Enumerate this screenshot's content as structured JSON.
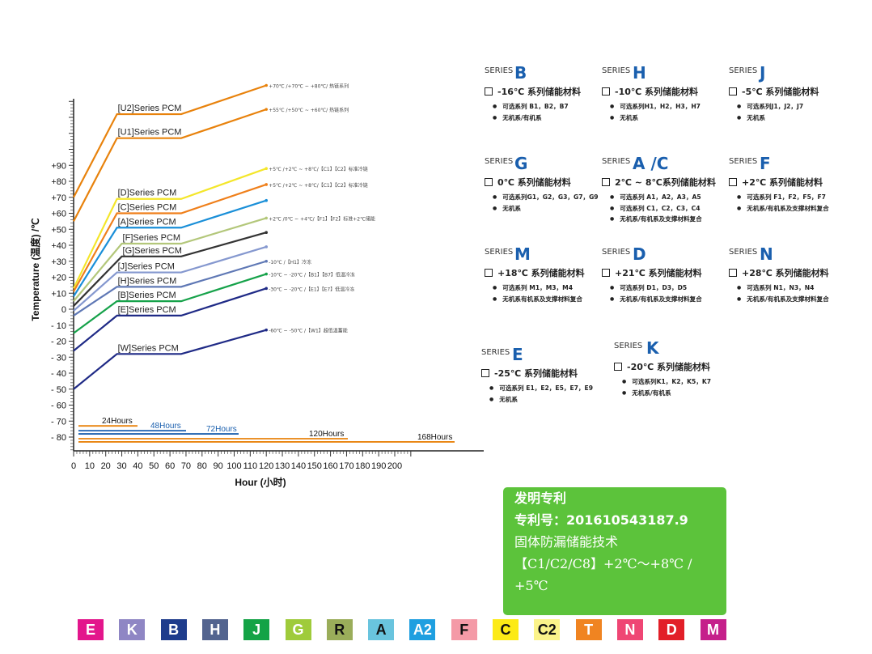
{
  "chart_data": {
    "type": "line",
    "ylabel": "Temperature (温度) /℃",
    "xlabel": "Hour (小时)",
    "xlim": [
      0,
      210
    ],
    "ylim": [
      -80,
      130
    ],
    "x_ticks": [
      "0",
      "10",
      "20",
      "30",
      "40",
      "50",
      "60",
      "70",
      "80",
      "90",
      "100",
      "110",
      "120",
      "130",
      "140",
      "150",
      "160",
      "170",
      "180",
      "190",
      "200"
    ],
    "y_ticks": [
      "+90",
      "+80",
      "+70",
      "+60",
      "+50",
      "+40",
      "+30",
      "+20",
      "+10",
      "0",
      "- 10",
      "- 20",
      "- 30",
      "- 40",
      "- 50",
      "- 60",
      "- 70",
      "- 80"
    ],
    "series": [
      {
        "name": "[U2]Series PCM",
        "color": "#e8820c",
        "x": [
          0,
          27,
          67,
          120
        ],
        "y": [
          70,
          122,
          122,
          140
        ],
        "annotation": "+70℃ /+70℃ ~ +80℃/ 热链系列"
      },
      {
        "name": "[U1]Series PCM",
        "color": "#e8820c",
        "x": [
          0,
          27,
          67,
          120
        ],
        "y": [
          55,
          107,
          107,
          125
        ],
        "annotation": "+55℃ /+50℃ ~ +60℃/ 热链系列"
      },
      {
        "name": "[D]Series PCM",
        "color": "#f4e62a",
        "x": [
          0,
          27,
          67,
          120
        ],
        "y": [
          13,
          69,
          69,
          88
        ],
        "annotation": "+5℃ /+2℃ ~ +8℃/【C1】【C2】标准冷链"
      },
      {
        "name": "[C]Series PCM",
        "color": "#ef7f1a",
        "x": [
          0,
          27,
          67,
          120
        ],
        "y": [
          11,
          60,
          60,
          78
        ],
        "annotation": "+5℃ /+2℃ ~ +8℃/【C1】【C2】标准冷链"
      },
      {
        "name": "[A]Series PCM",
        "color": "#1a8fd8",
        "x": [
          0,
          27,
          67,
          120
        ],
        "y": [
          8,
          51,
          51,
          68
        ],
        "annotation": ""
      },
      {
        "name": "[F]Series PCM",
        "color": "#b3c77a",
        "x": [
          0,
          30,
          67,
          120
        ],
        "y": [
          5,
          41,
          41,
          57
        ],
        "annotation": "+2℃ /0℃ ~ +4℃/【F1】【F2】标准+2℃储能"
      },
      {
        "name": "[G]Series PCM",
        "color": "#333333",
        "x": [
          0,
          30,
          67,
          120
        ],
        "y": [
          2,
          33,
          33,
          48
        ],
        "annotation": ""
      },
      {
        "name": "[J]Series PCM",
        "color": "#8598cf",
        "x": [
          0,
          27,
          67,
          120
        ],
        "y": [
          -1,
          23,
          23,
          39
        ],
        "annotation": ""
      },
      {
        "name": "[H]Series PCM",
        "color": "#5f78b5",
        "x": [
          0,
          27,
          67,
          120
        ],
        "y": [
          -4,
          14,
          14,
          30
        ],
        "annotation": "-10℃ /【H1】冷冻"
      },
      {
        "name": "[B]Series PCM",
        "color": "#16a24a",
        "x": [
          0,
          27,
          67,
          120
        ],
        "y": [
          -15,
          5,
          5,
          22
        ],
        "annotation": "-10℃ ~ -20℃ /【B1】【B7】低温冷冻"
      },
      {
        "name": "[E]Series PCM",
        "color": "#1f2a86",
        "x": [
          0,
          27,
          67,
          120
        ],
        "y": [
          -26,
          -4,
          -4,
          13
        ],
        "annotation": "-30℃ ~ -20℃ /【E1】【E7】低温冷冻"
      },
      {
        "name": "[W]Series PCM",
        "color": "#1f2a86",
        "x": [
          0,
          27,
          67,
          120
        ],
        "y": [
          -50,
          -28,
          -28,
          -13
        ],
        "annotation": "-60℃ ~ -50℃ /【W1】超低温蓄能"
      }
    ],
    "duration_bars": [
      {
        "label": "24Hours",
        "color": "#e8820c",
        "label_color": "#111111",
        "y": -73
      },
      {
        "label": "48Hours",
        "color": "#1a5fae",
        "label_color": "#1a5fae",
        "y": -76
      },
      {
        "label": "72Hours",
        "color": "#1a5fae",
        "label_color": "#1a5fae",
        "y": -78
      },
      {
        "label": "120Hours",
        "color": "#e8820c",
        "label_color": "#111111",
        "y": -81
      },
      {
        "label": "168Hours",
        "color": "#e8820c",
        "label_color": "#111111",
        "y": -83
      }
    ]
  },
  "series_cards": [
    {
      "prefix": "SERIES",
      "letter": "B",
      "title": "-16℃ 系列储能材料",
      "items": [
        "可选系列 B1，B2，B7",
        "无机系/有机系"
      ]
    },
    {
      "prefix": "SERIES",
      "letter": "H",
      "title": "-10℃ 系列储能材料",
      "items": [
        "可选系列H1，H2，H3，H7",
        "无机系"
      ]
    },
    {
      "prefix": "SERIES",
      "letter": "J",
      "title": "-5℃ 系列储能材料",
      "items": [
        "可选系列J1，J2，J7",
        "无机系"
      ]
    },
    {
      "prefix": "SERIES",
      "letter": "G",
      "title": "0℃ 系列储能材料",
      "items": [
        "可选系列G1，G2，G3，G7，G9",
        "无机系"
      ]
    },
    {
      "prefix": "SERIES",
      "letter": "A /C",
      "title": "2℃ ~ 8℃系列储能材料",
      "items": [
        "可选系列 A1，A2，A3，A5",
        "可选系列 C1，C2，C3，C4",
        "无机系/有机系及支撑材料复合"
      ]
    },
    {
      "prefix": "SERIES",
      "letter": "F",
      "title": "+2℃ 系列储能材料",
      "items": [
        "可选系列 F1，F2，F5，F7",
        "无机系/有机系及支撑材料复合"
      ]
    },
    {
      "prefix": "SERIES",
      "letter": "M",
      "title": "+18℃ 系列储能材料",
      "items": [
        "可选系列 M1，M3，M4",
        "无机系有机系及支撑材料复合"
      ]
    },
    {
      "prefix": "SERIES",
      "letter": "D",
      "title": "+21℃ 系列储能材料",
      "items": [
        "可选系列 D1，D3，D5",
        "无机系/有机系及支撑材料复合"
      ]
    },
    {
      "prefix": "SERIES",
      "letter": "N",
      "title": "+28℃ 系列储能材料",
      "items": [
        "可选系列 N1，N3，N4",
        "无机系/有机系及支撑材料复合"
      ]
    },
    {
      "prefix": "SERIES",
      "letter": "E",
      "title": "-25℃ 系列储能材料",
      "items": [
        "可选系列 E1，E2，E5，E7，E9",
        "无机系"
      ]
    },
    {
      "prefix": "SERIES",
      "letter": "K",
      "title": "-20℃ 系列储能材料",
      "items": [
        "可选系列K1，K2，K5，K7",
        "无机系/有机系"
      ]
    }
  ],
  "patent": {
    "line1": "发明专利",
    "line2": "专利号：201610543187.9",
    "line3": "固体防漏储能技术",
    "line4": "【C1/C2/C8】+2℃～+8℃ /",
    "line5": "+5℃"
  },
  "legend_tiles": [
    {
      "label": "E",
      "color": "#e3168c",
      "text": "light"
    },
    {
      "label": "K",
      "color": "#8f86c4",
      "text": "light"
    },
    {
      "label": "B",
      "color": "#1e3c8c",
      "text": "light"
    },
    {
      "label": "H",
      "color": "#53648f",
      "text": "light"
    },
    {
      "label": "J",
      "color": "#14a346",
      "text": "light"
    },
    {
      "label": "G",
      "color": "#9fcb3b",
      "text": "light"
    },
    {
      "label": "R",
      "color": "#9aad5a",
      "text": "dark"
    },
    {
      "label": "A",
      "color": "#69c4de",
      "text": "dark"
    },
    {
      "label": "A2",
      "color": "#1f9fe0",
      "text": "light"
    },
    {
      "label": "F",
      "color": "#f49aa7",
      "text": "dark"
    },
    {
      "label": "C",
      "color": "#fcea16",
      "text": "dark"
    },
    {
      "label": "C2",
      "color": "#fbf38a",
      "text": "dark"
    },
    {
      "label": "T",
      "color": "#f08421",
      "text": "light"
    },
    {
      "label": "N",
      "color": "#ef4674",
      "text": "light"
    },
    {
      "label": "D",
      "color": "#e21f28",
      "text": "light"
    },
    {
      "label": "M",
      "color": "#c51f8b",
      "text": "light"
    }
  ]
}
